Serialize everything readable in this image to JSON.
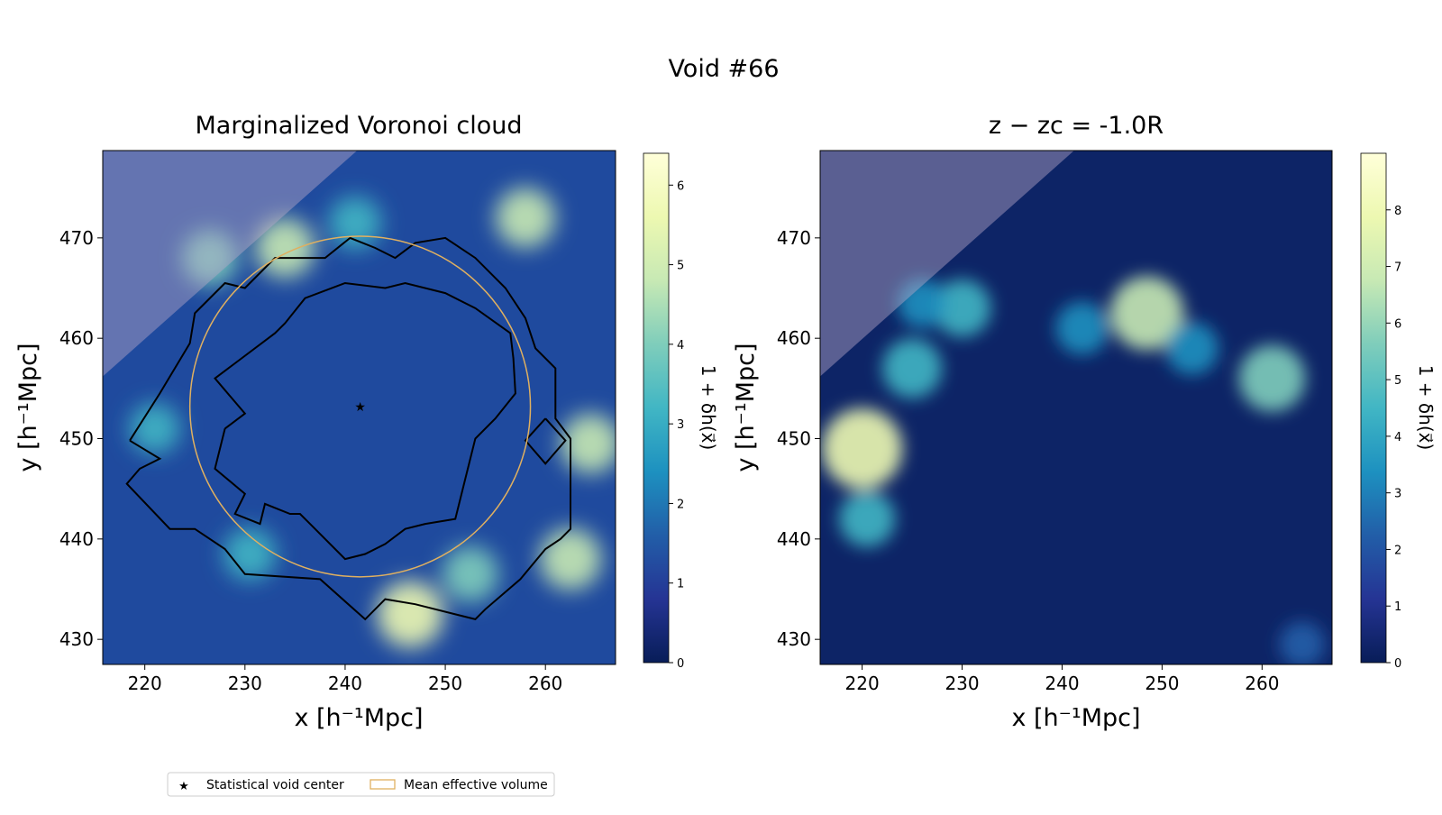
{
  "figure": {
    "title": "Void #66"
  },
  "panels": [
    {
      "title": "Marginalized Voronoi cloud",
      "xlabel": "x [h⁻¹Mpc]",
      "ylabel": "y [h⁻¹Mpc]",
      "colorbar_label": "1 + δh(x⃗)",
      "colorbar_ticks": [
        "0",
        "1",
        "2",
        "3",
        "4",
        "5",
        "6"
      ]
    },
    {
      "title": "z − zc = -1.0R",
      "xlabel": "x [h⁻¹Mpc]",
      "ylabel": "y [h⁻¹Mpc]",
      "colorbar_label": "1 + δh(x⃗)",
      "colorbar_ticks": [
        "0",
        "1",
        "2",
        "3",
        "4",
        "5",
        "6",
        "7",
        "8"
      ]
    }
  ],
  "legend": {
    "items": [
      {
        "label": "Statistical void center",
        "marker": "star",
        "color": "#e0b060"
      },
      {
        "label": "Mean effective volume",
        "marker": "rect-outline",
        "color": "#e0b060"
      }
    ]
  },
  "colormap": [
    "#081d58",
    "#253494",
    "#225ea8",
    "#1d91c0",
    "#41b6c4",
    "#7fcdbb",
    "#c7e9b4",
    "#edf8b1",
    "#ffffd9"
  ],
  "chart_data": [
    {
      "type": "heatmap",
      "title": "Marginalized Voronoi cloud",
      "xlabel": "x [h⁻¹Mpc]",
      "ylabel": "y [h⁻¹Mpc]",
      "xlim": [
        215.8,
        267.0
      ],
      "ylim": [
        427.5,
        478.7
      ],
      "xticks": [
        220,
        230,
        240,
        250,
        260
      ],
      "yticks": [
        430,
        440,
        450,
        460,
        470
      ],
      "colorbar": {
        "label": "1 + δh(x⃗)",
        "range": [
          0,
          6.4
        ],
        "ticks": [
          0,
          1,
          2,
          3,
          4,
          5,
          6
        ]
      },
      "void_center": {
        "x": 241.5,
        "y": 453.2,
        "label": "Statistical void center"
      },
      "mean_effective_volume": {
        "center_x": 241.5,
        "center_y": 453.2,
        "radius": 17.0,
        "label": "Mean effective volume"
      },
      "density_field_hotspots": [
        {
          "x": 246.5,
          "y": 432.5,
          "value": 5.5
        },
        {
          "x": 226.5,
          "y": 468.0,
          "value": 4.0
        },
        {
          "x": 234.0,
          "y": 469.0,
          "value": 4.5
        },
        {
          "x": 258.0,
          "y": 472.0,
          "value": 4.5
        },
        {
          "x": 262.5,
          "y": 438.0,
          "value": 4.8
        },
        {
          "x": 264.5,
          "y": 449.5,
          "value": 4.5
        },
        {
          "x": 252.5,
          "y": 436.5,
          "value": 4.0
        },
        {
          "x": 230.5,
          "y": 438.5,
          "value": 3.5
        },
        {
          "x": 221.0,
          "y": 451.0,
          "value": 3.2
        },
        {
          "x": 241.0,
          "y": 471.5,
          "value": 3.5
        }
      ],
      "contour_outer": [
        [
          218.5,
          449.8
        ],
        [
          221.5,
          454.5
        ],
        [
          224.5,
          459.5
        ],
        [
          225,
          462.5
        ],
        [
          228,
          465.5
        ],
        [
          230,
          465
        ],
        [
          233,
          468
        ],
        [
          237,
          468
        ],
        [
          238,
          468
        ],
        [
          240.5,
          470
        ],
        [
          243,
          469
        ],
        [
          245,
          468
        ],
        [
          247,
          469.5
        ],
        [
          250,
          470
        ],
        [
          253,
          468
        ],
        [
          256,
          465
        ],
        [
          258,
          462
        ],
        [
          259,
          459
        ],
        [
          261,
          457
        ],
        [
          261,
          452
        ],
        [
          262.5,
          450
        ],
        [
          262.5,
          446
        ],
        [
          262.5,
          441
        ],
        [
          261.5,
          440
        ],
        [
          260,
          439
        ],
        [
          257.5,
          436
        ],
        [
          254,
          433
        ],
        [
          253,
          432
        ],
        [
          247,
          433.5
        ],
        [
          244,
          434
        ],
        [
          242,
          432
        ],
        [
          237.5,
          436
        ],
        [
          230,
          436.5
        ],
        [
          228,
          439
        ],
        [
          225,
          441
        ],
        [
          222.5,
          441
        ],
        [
          218.2,
          445.5
        ],
        [
          219.5,
          447
        ],
        [
          221.5,
          448
        ],
        [
          218.5,
          449.8
        ]
      ],
      "contour_inner": [
        [
          228,
          451
        ],
        [
          230,
          452.5
        ],
        [
          227,
          456
        ],
        [
          229,
          457.5
        ],
        [
          233,
          460.5
        ],
        [
          234,
          461.5
        ],
        [
          236,
          464
        ],
        [
          240,
          465.5
        ],
        [
          244,
          465
        ],
        [
          246,
          465.5
        ],
        [
          250,
          464.5
        ],
        [
          253,
          463
        ],
        [
          256.5,
          460.5
        ],
        [
          256.8,
          458
        ],
        [
          257,
          454.5
        ],
        [
          255,
          452
        ],
        [
          253,
          450
        ],
        [
          252,
          446
        ],
        [
          251,
          442
        ],
        [
          248,
          441.5
        ],
        [
          246,
          441
        ],
        [
          244,
          439.5
        ],
        [
          242,
          438.5
        ],
        [
          240,
          438
        ],
        [
          236.5,
          441.5
        ],
        [
          235.5,
          442.5
        ],
        [
          234.5,
          442.5
        ],
        [
          232,
          443.5
        ],
        [
          231.5,
          441.5
        ],
        [
          229,
          442.5
        ],
        [
          230,
          444.5
        ],
        [
          227,
          447
        ],
        [
          228,
          451
        ]
      ],
      "side_box": [
        [
          260,
          452
        ],
        [
          262,
          449.8
        ],
        [
          260,
          447.5
        ],
        [
          258,
          449.8
        ],
        [
          260,
          452
        ]
      ],
      "masked_region": "upper-left corner above line from (215.8, 456.2) to (241.2, 478.7)"
    },
    {
      "type": "heatmap",
      "title": "z − zc = -1.0R",
      "xlabel": "x [h⁻¹Mpc]",
      "ylabel": "y [h⁻¹Mpc]",
      "xlim": [
        215.8,
        267.0
      ],
      "ylim": [
        427.5,
        478.7
      ],
      "xticks": [
        220,
        230,
        240,
        250,
        260
      ],
      "yticks": [
        430,
        440,
        450,
        460,
        470
      ],
      "colorbar": {
        "label": "1 + δh(x⃗)",
        "range": [
          0,
          9.0
        ],
        "ticks": [
          0,
          1,
          2,
          3,
          4,
          5,
          6,
          7,
          8
        ]
      },
      "density_field_hotspots": [
        {
          "x": 220.0,
          "y": 449.0,
          "value": 7.5
        },
        {
          "x": 248.5,
          "y": 462.5,
          "value": 6.5
        },
        {
          "x": 261.0,
          "y": 456.0,
          "value": 5.5
        },
        {
          "x": 225.0,
          "y": 457.0,
          "value": 4.5
        },
        {
          "x": 230.0,
          "y": 463.0,
          "value": 4.2
        },
        {
          "x": 242.0,
          "y": 461.0,
          "value": 3.5
        },
        {
          "x": 253.0,
          "y": 459.0,
          "value": 3.5
        },
        {
          "x": 226.0,
          "y": 463.5,
          "value": 3.0
        },
        {
          "x": 220.5,
          "y": 442.0,
          "value": 4.0
        },
        {
          "x": 264.0,
          "y": 429.5,
          "value": 2.5
        }
      ],
      "masked_region": "upper-left corner above line from (215.8, 456.2) to (241.2, 478.7)"
    }
  ]
}
